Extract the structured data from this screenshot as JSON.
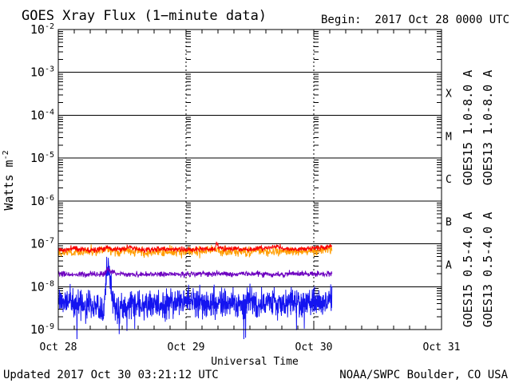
{
  "page": {
    "title": "GOES Xray Flux (1−minute data)",
    "begin_label": "Begin:  2017 Oct 28 0000 UTC",
    "footer": {
      "updated": "Updated 2017 Oct 30 03:21:12 UTC",
      "source": "NOAA/SWPC Boulder, CO USA"
    }
  },
  "chart_data": {
    "type": "line",
    "title": "GOES Xray Flux (1−minute data)",
    "begin": "2017 Oct 28 0000 UTC",
    "updated": "2017 Oct 30 03:21:12 UTC",
    "xlabel": "Universal Time",
    "ylabel": {
      "base": "Watts m",
      "sup": "-2"
    },
    "x_axis": {
      "unit": "hours since 2017 Oct 28 0000 UTC",
      "min": 0,
      "max": 72,
      "major_ticks": [
        {
          "label": "Oct 28",
          "hour": 0
        },
        {
          "label": "Oct 29",
          "hour": 24
        },
        {
          "label": "Oct 30",
          "hour": 48
        },
        {
          "label": "Oct 31",
          "hour": 72
        }
      ],
      "minor_tick_step_hours": 3,
      "day_gridline_hours": [
        24,
        48
      ],
      "gridline_style": "dotted"
    },
    "y_axis": {
      "scale": "log",
      "top_exp": -2,
      "bottom_exp": -9,
      "ticks": [
        {
          "base": "10",
          "sup": "-2",
          "exp": -2
        },
        {
          "base": "10",
          "sup": "-3",
          "exp": -3
        },
        {
          "base": "10",
          "sup": "-4",
          "exp": -4
        },
        {
          "base": "10",
          "sup": "-5",
          "exp": -5
        },
        {
          "base": "10",
          "sup": "-6",
          "exp": -6
        },
        {
          "base": "10",
          "sup": "-7",
          "exp": -7
        },
        {
          "base": "10",
          "sup": "-8",
          "exp": -8
        },
        {
          "base": "10",
          "sup": "-9",
          "exp": -9
        }
      ]
    },
    "flare_classes": [
      {
        "label": "X",
        "center_exp": -3.5
      },
      {
        "label": "M",
        "center_exp": -4.5
      },
      {
        "label": "C",
        "center_exp": -5.5
      },
      {
        "label": "B",
        "center_exp": -6.5
      },
      {
        "label": "A",
        "center_exp": -7.5
      }
    ],
    "right_labels": [
      {
        "text": "GOES15 1.0-8.0 A",
        "color": "#f80000",
        "column": 0,
        "group": "long"
      },
      {
        "text": "GOES13 1.0-8.0 A",
        "color": "#ff9d00",
        "column": 1,
        "group": "long"
      },
      {
        "text": "GOES15 0.5-4.0 A",
        "color": "#1414f0",
        "column": 0,
        "group": "short"
      },
      {
        "text": "GOES13 0.5-4.0 A",
        "color": "#6d00c0",
        "column": 1,
        "group": "short"
      }
    ],
    "data_end_hour": 51.4,
    "series": [
      {
        "name": "GOES13 1.0-8.0 A",
        "color": "#ff9d00",
        "seed": 22,
        "noise_log": 0.055,
        "samples": 800,
        "points": [
          [
            0,
            -7.18
          ],
          [
            4,
            -7.2
          ],
          [
            8,
            -7.16
          ],
          [
            9.3,
            -7.12
          ],
          [
            10,
            -7.18
          ],
          [
            14,
            -7.18
          ],
          [
            18,
            -7.2
          ],
          [
            22,
            -7.18
          ],
          [
            26,
            -7.19
          ],
          [
            29.8,
            -7.14
          ],
          [
            31,
            -7.18
          ],
          [
            35,
            -7.18
          ],
          [
            39,
            -7.16
          ],
          [
            43,
            -7.18
          ],
          [
            47,
            -7.17
          ],
          [
            50,
            -7.14
          ],
          [
            51.4,
            -7.08
          ]
        ]
      },
      {
        "name": "GOES15 1.0-8.0 A",
        "color": "#f80000",
        "seed": 11,
        "noise_log": 0.03,
        "samples": 800,
        "points": [
          [
            0,
            -7.13
          ],
          [
            1.5,
            -7.15
          ],
          [
            3.0,
            -7.08
          ],
          [
            3.4,
            -7.12
          ],
          [
            6,
            -7.14
          ],
          [
            8.8,
            -7.1
          ],
          [
            9.3,
            -7.05
          ],
          [
            9.8,
            -7.12
          ],
          [
            12,
            -7.13
          ],
          [
            13.4,
            -7.06
          ],
          [
            14,
            -7.12
          ],
          [
            16,
            -7.14
          ],
          [
            20,
            -7.12
          ],
          [
            24,
            -7.14
          ],
          [
            27,
            -7.12
          ],
          [
            29.5,
            -7.12
          ],
          [
            29.8,
            -6.96
          ],
          [
            30.1,
            -7.1
          ],
          [
            33,
            -7.12
          ],
          [
            36,
            -7.13
          ],
          [
            39,
            -7.1
          ],
          [
            41.5,
            -7.06
          ],
          [
            42.2,
            -7.12
          ],
          [
            45,
            -7.12
          ],
          [
            48,
            -7.1
          ],
          [
            50,
            -7.1
          ],
          [
            51.0,
            -7.05
          ],
          [
            51.4,
            -7.02
          ]
        ]
      },
      {
        "name": "GOES15 0.5-4.0 A",
        "color": "#1414f0",
        "seed": 44,
        "noise_log": 0.16,
        "samples": 1200,
        "dropout_chance": 0.014,
        "dropout_depth": 0.9,
        "points": [
          [
            0,
            -8.28
          ],
          [
            1,
            -8.38
          ],
          [
            2,
            -8.3
          ],
          [
            3,
            -8.42
          ],
          [
            4,
            -8.33
          ],
          [
            5,
            -8.45
          ],
          [
            6,
            -8.38
          ],
          [
            7,
            -8.48
          ],
          [
            8.0,
            -8.55
          ],
          [
            8.45,
            -8.75
          ],
          [
            8.7,
            -8.35
          ],
          [
            9.0,
            -7.7
          ],
          [
            9.15,
            -7.53
          ],
          [
            9.45,
            -7.65
          ],
          [
            9.8,
            -7.95
          ],
          [
            10.1,
            -8.18
          ],
          [
            10.5,
            -8.42
          ],
          [
            11.2,
            -8.55
          ],
          [
            12,
            -8.5
          ],
          [
            13,
            -8.42
          ],
          [
            14.5,
            -8.38
          ],
          [
            16,
            -8.45
          ],
          [
            18,
            -8.38
          ],
          [
            20,
            -8.42
          ],
          [
            22,
            -8.36
          ],
          [
            24,
            -8.32
          ],
          [
            26,
            -8.42
          ],
          [
            28,
            -8.38
          ],
          [
            30,
            -8.42
          ],
          [
            32,
            -8.36
          ],
          [
            34,
            -8.42
          ],
          [
            36,
            -8.34
          ],
          [
            38,
            -8.4
          ],
          [
            40,
            -8.36
          ],
          [
            42,
            -8.42
          ],
          [
            44,
            -8.34
          ],
          [
            46,
            -8.38
          ],
          [
            48,
            -8.36
          ],
          [
            50,
            -8.4
          ],
          [
            51.4,
            -8.25
          ]
        ]
      },
      {
        "name": "GOES13 0.5-4.0 A",
        "color": "#6d00c0",
        "seed": 33,
        "noise_log": 0.032,
        "samples": 800,
        "points": [
          [
            0,
            -7.71
          ],
          [
            4,
            -7.72
          ],
          [
            8.6,
            -7.72
          ],
          [
            9.0,
            -7.62
          ],
          [
            9.35,
            -7.57
          ],
          [
            9.9,
            -7.64
          ],
          [
            10.8,
            -7.69
          ],
          [
            12,
            -7.71
          ],
          [
            16,
            -7.72
          ],
          [
            20,
            -7.7
          ],
          [
            24,
            -7.71
          ],
          [
            28,
            -7.69
          ],
          [
            32,
            -7.71
          ],
          [
            36,
            -7.7
          ],
          [
            40,
            -7.71
          ],
          [
            44,
            -7.7
          ],
          [
            48,
            -7.71
          ],
          [
            51.4,
            -7.7
          ]
        ]
      }
    ],
    "colors": {
      "axis": "#000000",
      "background": "#ffffff"
    }
  }
}
